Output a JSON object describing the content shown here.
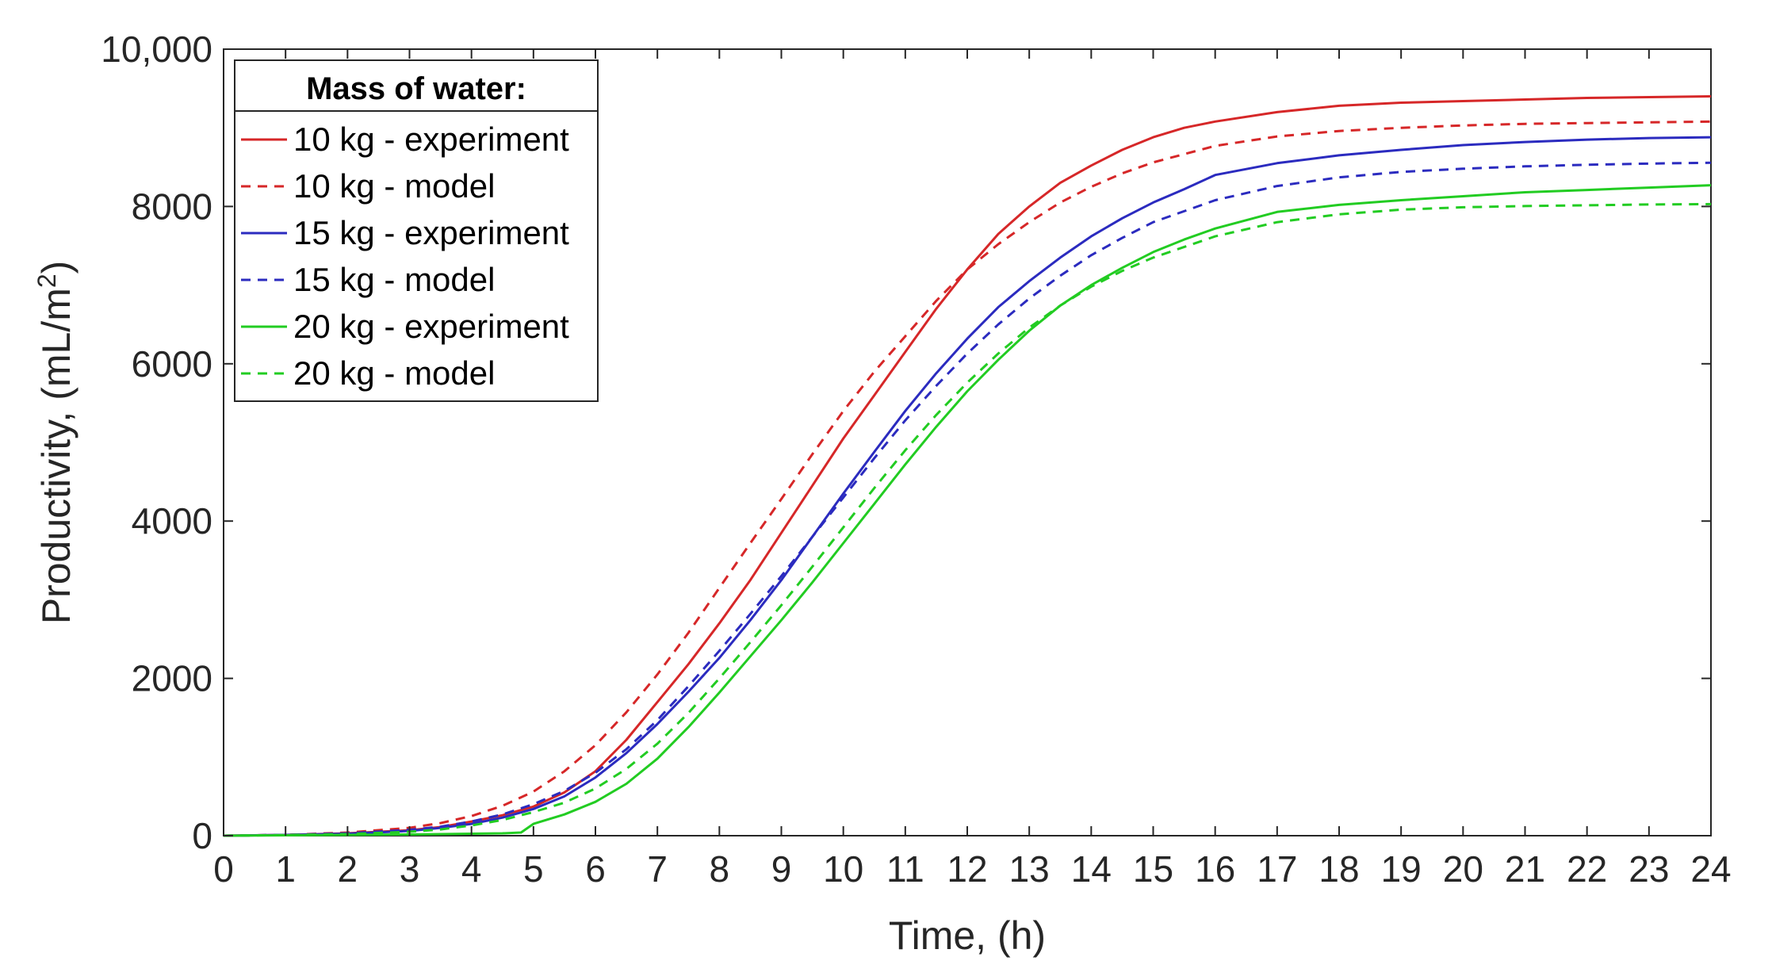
{
  "chart_data": {
    "type": "line",
    "xlabel": "Time, (h)",
    "ylabel_main": "Productivity, (mL/m",
    "ylabel_sup": "2",
    "ylabel_close": ")",
    "xlim": [
      0,
      24
    ],
    "ylim": [
      0,
      10000
    ],
    "xticks": [
      0,
      1,
      2,
      3,
      4,
      5,
      6,
      7,
      8,
      9,
      10,
      11,
      12,
      13,
      14,
      15,
      16,
      17,
      18,
      19,
      20,
      21,
      22,
      23,
      24
    ],
    "xtick_labels": [
      "0",
      "1",
      "2",
      "3",
      "4",
      "5",
      "6",
      "7",
      "8",
      "9",
      "10",
      "11",
      "12",
      "13",
      "14",
      "15",
      "16",
      "17",
      "18",
      "19",
      "20",
      "21",
      "22",
      "23",
      "24"
    ],
    "yticks": [
      0,
      2000,
      4000,
      6000,
      8000,
      10000
    ],
    "ytick_labels": [
      "0",
      "2000",
      "4000",
      "6000",
      "8000",
      "10,000"
    ],
    "grid": false,
    "legend": {
      "title": "Mass of water:",
      "position": "top-left"
    },
    "series": [
      {
        "name": "10 kg - experiment",
        "color": "#d62728",
        "dash": "solid",
        "x": [
          0,
          1,
          2,
          3,
          3.5,
          4,
          4.5,
          5,
          5.5,
          6,
          6.5,
          7,
          7.5,
          8,
          8.5,
          9,
          9.5,
          10,
          10.5,
          11,
          11.5,
          12,
          12.5,
          13,
          13.5,
          14,
          14.5,
          15,
          15.5,
          16,
          17,
          18,
          19,
          20,
          21,
          22,
          23,
          24
        ],
        "y": [
          0,
          10,
          30,
          70,
          110,
          180,
          260,
          370,
          550,
          820,
          1220,
          1700,
          2180,
          2700,
          3250,
          3850,
          4450,
          5050,
          5600,
          6150,
          6700,
          7200,
          7650,
          8000,
          8300,
          8520,
          8720,
          8880,
          9000,
          9080,
          9200,
          9280,
          9320,
          9340,
          9360,
          9380,
          9390,
          9400
        ]
      },
      {
        "name": "10 kg - model",
        "color": "#d62728",
        "dash": "dashed",
        "x": [
          0,
          1,
          2,
          3,
          3.5,
          4,
          4.5,
          5,
          5.5,
          6,
          6.5,
          7,
          7.5,
          8,
          8.5,
          9,
          9.5,
          10,
          10.5,
          11,
          11.5,
          12,
          12.5,
          13,
          13.5,
          14,
          14.5,
          15,
          16,
          17,
          18,
          19,
          20,
          21,
          22,
          23,
          24
        ],
        "y": [
          0,
          10,
          40,
          100,
          160,
          250,
          380,
          560,
          820,
          1150,
          1570,
          2050,
          2580,
          3150,
          3720,
          4280,
          4850,
          5400,
          5900,
          6350,
          6800,
          7200,
          7520,
          7800,
          8050,
          8250,
          8420,
          8560,
          8770,
          8890,
          8960,
          9000,
          9030,
          9050,
          9060,
          9070,
          9080
        ]
      },
      {
        "name": "15 kg - experiment",
        "color": "#2b2bbf",
        "dash": "solid",
        "x": [
          0,
          1,
          2,
          3,
          3.5,
          4,
          4.5,
          5,
          5.5,
          6,
          6.5,
          7,
          7.5,
          8,
          8.5,
          9,
          9.5,
          10,
          10.5,
          11,
          11.5,
          12,
          12.5,
          13,
          13.5,
          14,
          14.5,
          15,
          15.5,
          16,
          17,
          18,
          19,
          20,
          21,
          22,
          23,
          24
        ],
        "y": [
          0,
          10,
          25,
          60,
          100,
          150,
          230,
          340,
          500,
          740,
          1050,
          1420,
          1830,
          2260,
          2740,
          3250,
          3800,
          4350,
          4880,
          5400,
          5880,
          6320,
          6720,
          7050,
          7350,
          7620,
          7850,
          8050,
          8220,
          8400,
          8550,
          8650,
          8720,
          8780,
          8820,
          8850,
          8870,
          8880
        ]
      },
      {
        "name": "15 kg - model",
        "color": "#2b2bbf",
        "dash": "dashed",
        "x": [
          0,
          1,
          2,
          3,
          3.5,
          4,
          4.5,
          5,
          5.5,
          6,
          6.5,
          7,
          7.5,
          8,
          8.5,
          9,
          9.5,
          10,
          10.5,
          11,
          11.5,
          12,
          12.5,
          13,
          13.5,
          14,
          14.5,
          15,
          16,
          17,
          18,
          19,
          20,
          21,
          22,
          23,
          24
        ],
        "y": [
          0,
          10,
          30,
          75,
          115,
          180,
          270,
          400,
          570,
          800,
          1100,
          1470,
          1900,
          2350,
          2820,
          3300,
          3800,
          4300,
          4800,
          5280,
          5720,
          6130,
          6500,
          6830,
          7120,
          7380,
          7600,
          7800,
          8080,
          8260,
          8370,
          8440,
          8480,
          8510,
          8530,
          8545,
          8555
        ]
      },
      {
        "name": "20 kg - experiment",
        "color": "#22cc22",
        "dash": "solid",
        "x": [
          0,
          1,
          2,
          3,
          4,
          4.5,
          4.8,
          5,
          5.5,
          6,
          6.5,
          7,
          7.5,
          8,
          8.5,
          9,
          9.5,
          10,
          10.5,
          11,
          11.5,
          12,
          12.5,
          13,
          13.5,
          14,
          14.5,
          15,
          15.5,
          16,
          17,
          18,
          19,
          20,
          21,
          22,
          23,
          24
        ],
        "y": [
          0,
          5,
          10,
          15,
          25,
          30,
          40,
          150,
          270,
          430,
          660,
          980,
          1380,
          1820,
          2280,
          2740,
          3220,
          3720,
          4220,
          4720,
          5200,
          5650,
          6050,
          6420,
          6740,
          7000,
          7220,
          7420,
          7580,
          7720,
          7930,
          8020,
          8080,
          8130,
          8180,
          8210,
          8240,
          8270
        ]
      },
      {
        "name": "20 kg - model",
        "color": "#22cc22",
        "dash": "dashed",
        "x": [
          0,
          1,
          2,
          3,
          3.5,
          4,
          4.5,
          5,
          5.5,
          6,
          6.5,
          7,
          7.5,
          8,
          8.5,
          9,
          9.5,
          10,
          10.5,
          11,
          11.5,
          12,
          12.5,
          13,
          13.5,
          14,
          14.5,
          15,
          16,
          17,
          18,
          19,
          20,
          21,
          22,
          23,
          24
        ],
        "y": [
          0,
          8,
          20,
          50,
          80,
          130,
          200,
          300,
          420,
          600,
          850,
          1170,
          1560,
          2000,
          2460,
          2930,
          3420,
          3920,
          4420,
          4900,
          5350,
          5760,
          6130,
          6460,
          6740,
          6980,
          7180,
          7350,
          7620,
          7800,
          7900,
          7960,
          7990,
          8005,
          8015,
          8025,
          8030
        ]
      }
    ]
  }
}
